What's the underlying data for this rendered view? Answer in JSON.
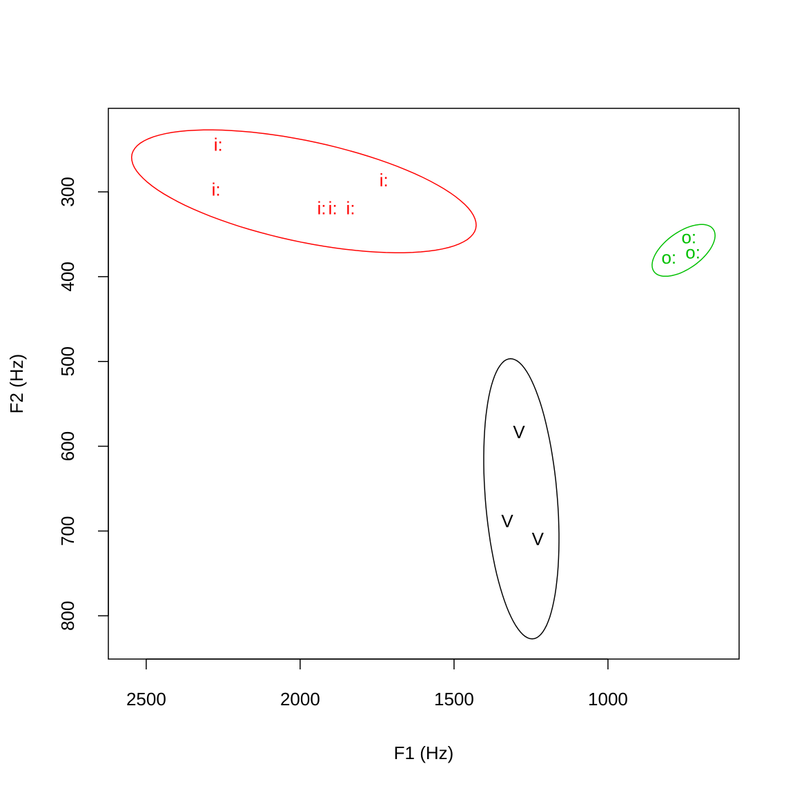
{
  "chart_data": {
    "type": "scatter",
    "x_label": "F1 (Hz)",
    "y_label": "F2 (Hz)",
    "xlim": [
      2623,
      574
    ],
    "ylim": [
      201.5,
      851
    ],
    "xticks": [
      2500,
      2000,
      1500,
      1000
    ],
    "yticks": [
      300,
      400,
      500,
      600,
      700,
      800
    ],
    "series": [
      {
        "name": "i:",
        "color": "#ff0000",
        "x": [
          2266,
          2273,
          1930,
          1894,
          1836,
          1728
        ],
        "y": [
          246,
          299,
          321,
          321,
          321,
          288
        ]
      },
      {
        "name": "o:",
        "color": "#00c000",
        "x": [
          737,
          802,
          724
        ],
        "y": [
          355,
          379,
          373
        ]
      },
      {
        "name": "V",
        "color": "#000000",
        "x": [
          1289,
          1327,
          1228
        ],
        "y": [
          585,
          690,
          711
        ]
      }
    ]
  }
}
